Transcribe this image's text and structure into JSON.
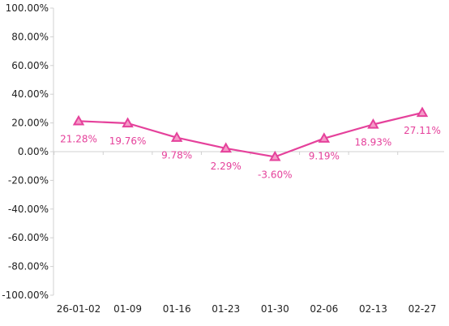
{
  "chart_data": {
    "type": "line",
    "categories": [
      "26-01-02",
      "01-09",
      "01-16",
      "01-23",
      "01-30",
      "02-06",
      "02-13",
      "02-27"
    ],
    "series": [
      {
        "values": [
          21.28,
          19.76,
          9.78,
          2.29,
          -3.6,
          9.19,
          18.93,
          27.11
        ],
        "color": "#e5419b",
        "marker": "triangle"
      }
    ],
    "data_labels": [
      "21.28%",
      "19.76%",
      "9.78%",
      "2.29%",
      "-3.60%",
      "9.19%",
      "18.93%",
      "27.11%"
    ],
    "y_ticks": [
      100,
      80,
      60,
      40,
      20,
      0,
      -20,
      -40,
      -60,
      -80,
      -100
    ],
    "y_tick_labels": [
      "100.00%",
      "80.00%",
      "60.00%",
      "40.00%",
      "20.00%",
      "0.00%",
      "-20.00%",
      "-40.00%",
      "-60.00%",
      "-80.00%",
      "-100.00%"
    ],
    "ylim": [
      -100,
      100
    ],
    "grid": false,
    "title": "",
    "xlabel": "",
    "ylabel": "",
    "colors": {
      "series": "#e5419b",
      "marker_fill": "#f59ac7",
      "axis": "#d0d0d0",
      "text": "#222222"
    }
  }
}
